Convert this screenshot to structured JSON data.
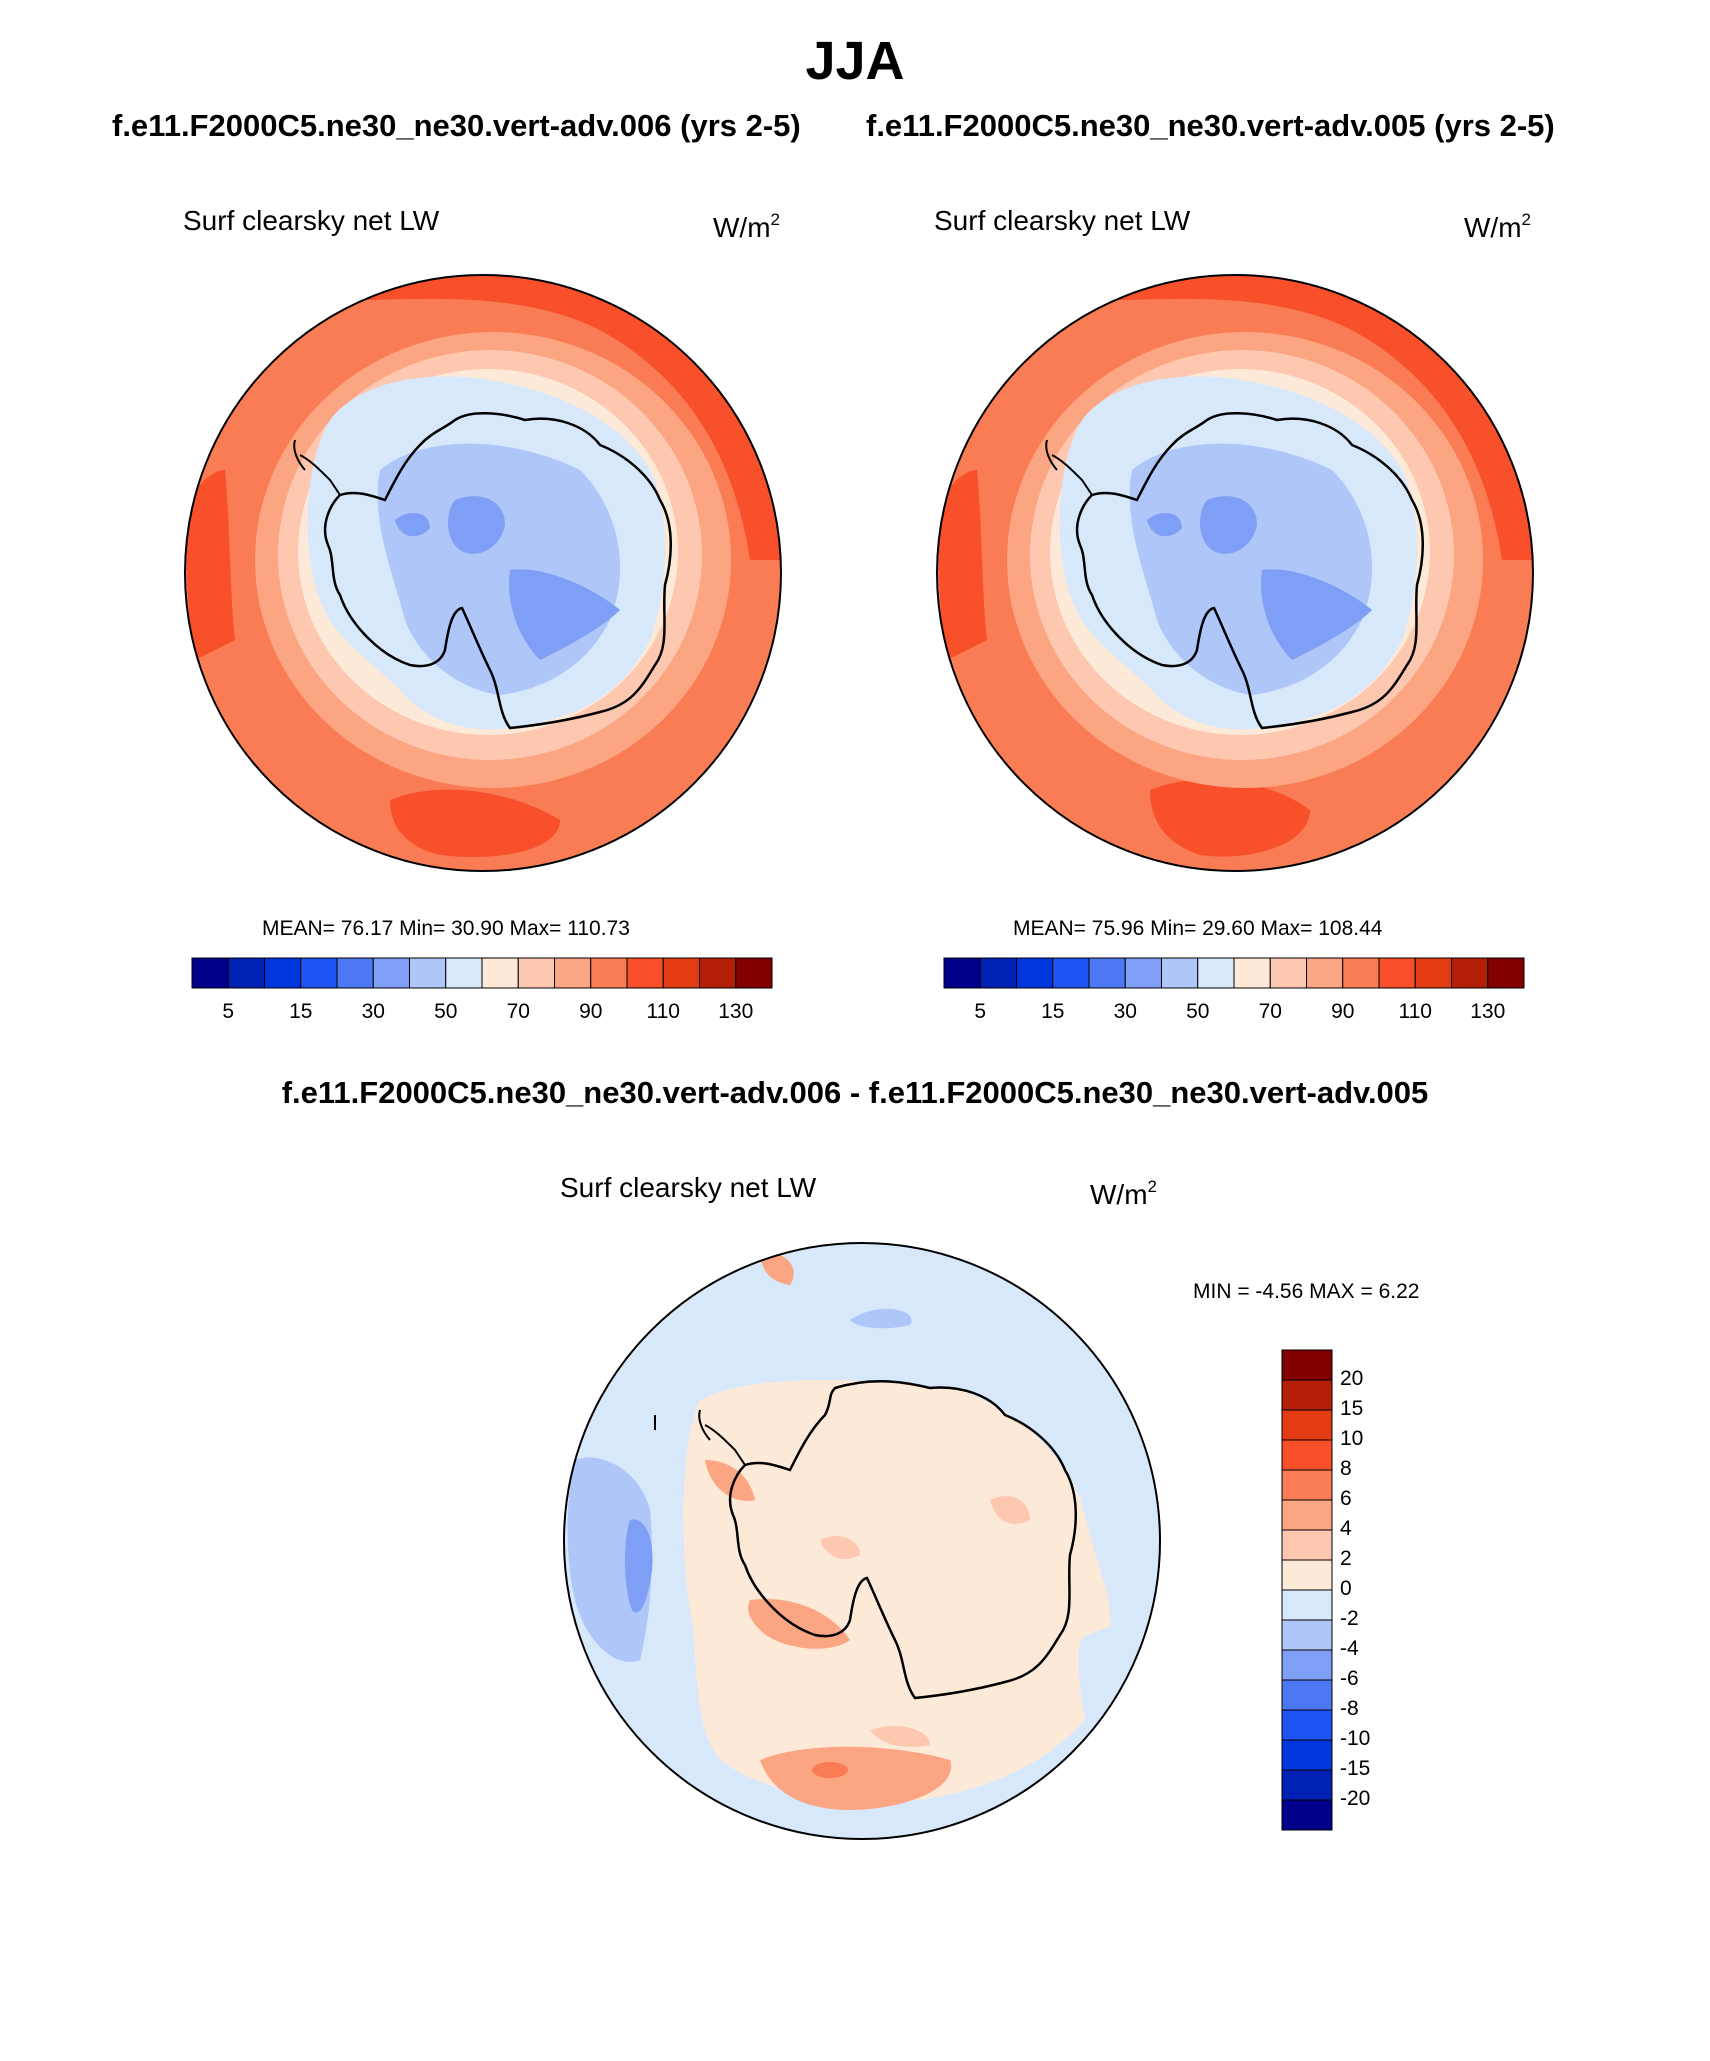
{
  "title": "JJA",
  "panels": [
    {
      "case": "f.e11.F2000C5.ne30_ne30.vert-adv.006 (yrs 2-5)",
      "variable": "Surf clearsky net LW",
      "units": "W/m",
      "units_exp": "2",
      "stats": "MEAN=  76.17  Min=  30.90  Max= 110.73"
    },
    {
      "case": "f.e11.F2000C5.ne30_ne30.vert-adv.005 (yrs 2-5)",
      "variable": "Surf clearsky net LW",
      "units": "W/m",
      "units_exp": "2",
      "stats": "MEAN=  75.96  Min=  29.60  Max= 108.44"
    }
  ],
  "main_colorbar": {
    "colors": [
      "#00008c",
      "#0022b4",
      "#0037dc",
      "#1f54f4",
      "#4c78f4",
      "#7f9ef6",
      "#aec6f8",
      "#d8e8fb",
      "#fde9d8",
      "#fdc8af",
      "#fba583",
      "#f97c55",
      "#f7502a",
      "#e33c12",
      "#b51f08",
      "#830000"
    ],
    "tick_labels": [
      "5",
      "15",
      "30",
      "50",
      "70",
      "90",
      "110",
      "130"
    ]
  },
  "difference": {
    "title": "f.e11.F2000C5.ne30_ne30.vert-adv.006 - f.e11.F2000C5.ne30_ne30.vert-adv.005",
    "variable": "Surf clearsky net LW",
    "units": "W/m",
    "units_exp": "2",
    "stats": "MIN =  -4.56 MAX =   6.22",
    "colorbar": {
      "colors_top_to_bottom": [
        "#830000",
        "#b51f08",
        "#e33c12",
        "#f7502a",
        "#f97c55",
        "#fba583",
        "#fdc8af",
        "#fde9d8",
        "#d8e8fb",
        "#aec6f8",
        "#7f9ef6",
        "#4c78f4",
        "#1f54f4",
        "#0037dc",
        "#0022b4",
        "#00008c"
      ],
      "tick_labels": [
        "20",
        "15",
        "10",
        "8",
        "6",
        "4",
        "2",
        "0",
        "-2",
        "-4",
        "-6",
        "-8",
        "-10",
        "-15",
        "-20"
      ]
    }
  }
}
